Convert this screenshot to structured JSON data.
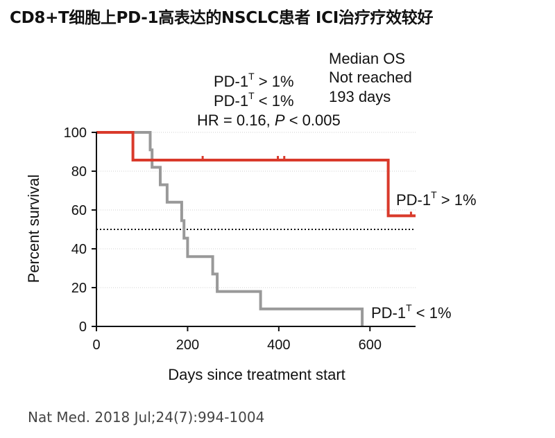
{
  "title": "CD8+T细胞上PD-1高表达的NSCLC患者 ICI治疗疗效较好",
  "citation": "Nat Med. 2018 Jul;24(7):994-1004",
  "chart_data": {
    "type": "line",
    "subtype": "kaplan-meier-step",
    "xlabel": "Days since treatment start",
    "ylabel": "Percent survival",
    "xlim": [
      0,
      700
    ],
    "ylim": [
      0,
      100
    ],
    "xticks": [
      0,
      200,
      400,
      600
    ],
    "yticks": [
      0,
      20,
      40,
      60,
      80,
      100
    ],
    "grid": "horizontal dotted",
    "median_line": 50,
    "legend": {
      "header": "Median OS",
      "entries": [
        {
          "label_main": "PD-1",
          "label_sup": "T",
          "label_rest": " > 1%",
          "median": "Not reached"
        },
        {
          "label_main": "PD-1",
          "label_sup": "T",
          "label_rest": " < 1%",
          "median": "193 days"
        }
      ],
      "hr_prefix": "HR = 0.16, ",
      "hr_p": "P",
      "hr_suffix": " < 0.005"
    },
    "series": [
      {
        "color": "#d93a2b",
        "end_label_main": "PD-1",
        "end_label_sup": "T",
        "end_label_rest": " > 1%",
        "x": [
          0,
          80,
          80,
          640,
          640,
          700
        ],
        "y": [
          100,
          100,
          85.7,
          85.7,
          57,
          57
        ],
        "censor": [
          [
            233,
            85.7
          ],
          [
            398,
            85.7
          ],
          [
            412,
            85.7
          ],
          [
            690,
            57
          ]
        ]
      },
      {
        "color": "#999999",
        "end_label_main": "PD-1",
        "end_label_sup": "T",
        "end_label_rest": " < 1%",
        "x": [
          0,
          118,
          118,
          122,
          122,
          140,
          140,
          155,
          155,
          187,
          187,
          192,
          192,
          200,
          200,
          255,
          255,
          265,
          265,
          360,
          360,
          583,
          583
        ],
        "y": [
          100,
          100,
          91,
          91,
          82,
          82,
          73,
          73,
          64,
          64,
          54.5,
          54.5,
          45.5,
          45.5,
          36,
          36,
          27,
          27,
          18,
          18,
          9,
          9,
          0
        ],
        "censor": []
      }
    ]
  }
}
